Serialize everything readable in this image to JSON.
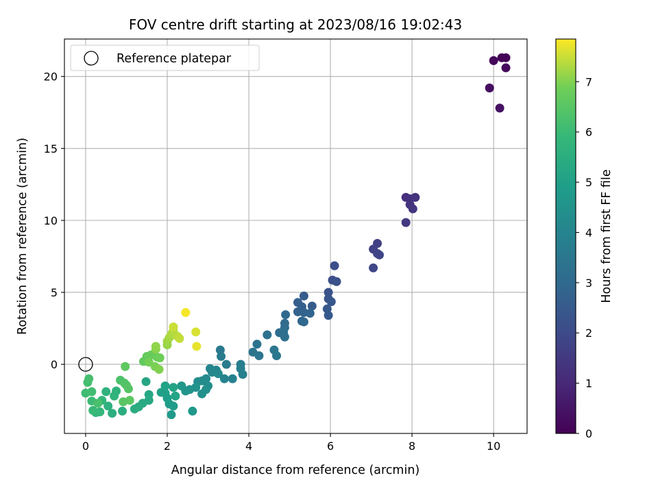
{
  "chart_data": {
    "type": "scatter",
    "title": "FOV centre drift starting at 2023/08/16 19:02:43",
    "xlabel": "Angular distance from reference (arcmin)",
    "ylabel": "Rotation from reference (arcmin)",
    "colorbar_label": "Hours from first FF file",
    "xlim": [
      -0.52,
      10.82
    ],
    "ylim": [
      -4.8,
      22.6
    ],
    "x_ticks": [
      0,
      2,
      4,
      6,
      8,
      10
    ],
    "y_ticks": [
      0,
      5,
      10,
      15,
      20
    ],
    "colorbar_range": [
      0,
      7.85
    ],
    "colorbar_ticks": [
      0,
      1,
      2,
      3,
      4,
      5,
      6,
      7
    ],
    "colormap": "viridis",
    "grid": true,
    "legend": {
      "position": "top-left",
      "entries": [
        "Reference platepar"
      ]
    },
    "reference_point": {
      "x": 0,
      "y": 0
    },
    "points": [
      {
        "x": 10.2,
        "y": 21.3,
        "h": 0.05
      },
      {
        "x": 10.3,
        "y": 21.3,
        "h": 0.1
      },
      {
        "x": 10.0,
        "y": 21.1,
        "h": 0.15
      },
      {
        "x": 10.3,
        "y": 20.6,
        "h": 0.2
      },
      {
        "x": 9.9,
        "y": 19.2,
        "h": 0.3
      },
      {
        "x": 10.15,
        "y": 17.8,
        "h": 0.4
      },
      {
        "x": 7.85,
        "y": 11.6,
        "h": 1.2
      },
      {
        "x": 7.95,
        "y": 11.5,
        "h": 1.25
      },
      {
        "x": 8.08,
        "y": 11.6,
        "h": 1.3
      },
      {
        "x": 7.95,
        "y": 11.1,
        "h": 1.35
      },
      {
        "x": 8.02,
        "y": 10.8,
        "h": 1.4
      },
      {
        "x": 7.85,
        "y": 9.85,
        "h": 1.5
      },
      {
        "x": 7.15,
        "y": 8.4,
        "h": 1.7
      },
      {
        "x": 7.05,
        "y": 8.0,
        "h": 1.75
      },
      {
        "x": 7.15,
        "y": 7.7,
        "h": 1.8
      },
      {
        "x": 7.2,
        "y": 7.6,
        "h": 1.85
      },
      {
        "x": 7.05,
        "y": 6.7,
        "h": 1.9
      },
      {
        "x": 6.1,
        "y": 6.85,
        "h": 2.1
      },
      {
        "x": 6.05,
        "y": 5.85,
        "h": 2.15
      },
      {
        "x": 6.15,
        "y": 5.75,
        "h": 2.2
      },
      {
        "x": 5.95,
        "y": 5.0,
        "h": 2.3
      },
      {
        "x": 5.95,
        "y": 4.55,
        "h": 2.35
      },
      {
        "x": 6.02,
        "y": 4.35,
        "h": 2.4
      },
      {
        "x": 5.92,
        "y": 3.85,
        "h": 2.45
      },
      {
        "x": 5.95,
        "y": 3.4,
        "h": 2.5
      },
      {
        "x": 5.55,
        "y": 4.05,
        "h": 2.55
      },
      {
        "x": 5.35,
        "y": 4.75,
        "h": 2.6
      },
      {
        "x": 5.2,
        "y": 4.3,
        "h": 2.65
      },
      {
        "x": 5.3,
        "y": 4.0,
        "h": 2.7
      },
      {
        "x": 5.2,
        "y": 3.65,
        "h": 2.75
      },
      {
        "x": 5.35,
        "y": 3.6,
        "h": 2.8
      },
      {
        "x": 5.5,
        "y": 3.55,
        "h": 2.85
      },
      {
        "x": 5.3,
        "y": 3.0,
        "h": 2.9
      },
      {
        "x": 5.35,
        "y": 2.95,
        "h": 2.95
      },
      {
        "x": 4.9,
        "y": 3.45,
        "h": 3.0
      },
      {
        "x": 4.88,
        "y": 2.85,
        "h": 3.05
      },
      {
        "x": 4.88,
        "y": 2.55,
        "h": 3.1
      },
      {
        "x": 4.75,
        "y": 2.2,
        "h": 3.15
      },
      {
        "x": 4.85,
        "y": 2.2,
        "h": 3.2
      },
      {
        "x": 4.88,
        "y": 1.9,
        "h": 3.25
      },
      {
        "x": 4.45,
        "y": 2.05,
        "h": 3.3
      },
      {
        "x": 4.2,
        "y": 1.4,
        "h": 3.35
      },
      {
        "x": 4.1,
        "y": 0.85,
        "h": 3.4
      },
      {
        "x": 4.25,
        "y": 0.6,
        "h": 3.45
      },
      {
        "x": 4.62,
        "y": 1.0,
        "h": 3.5
      },
      {
        "x": 4.68,
        "y": 0.6,
        "h": 3.55
      },
      {
        "x": 3.3,
        "y": 1.0,
        "h": 3.6
      },
      {
        "x": 3.32,
        "y": 0.55,
        "h": 3.65
      },
      {
        "x": 3.45,
        "y": 0.0,
        "h": 3.7
      },
      {
        "x": 3.8,
        "y": 0.0,
        "h": 3.75
      },
      {
        "x": 3.8,
        "y": -0.3,
        "h": 3.8
      },
      {
        "x": 3.85,
        "y": -0.7,
        "h": 3.85
      },
      {
        "x": 3.6,
        "y": -1.0,
        "h": 3.9
      },
      {
        "x": 3.4,
        "y": -1.0,
        "h": 3.95
      },
      {
        "x": 3.2,
        "y": -0.4,
        "h": 4.0
      },
      {
        "x": 3.05,
        "y": -0.3,
        "h": 4.05
      },
      {
        "x": 3.1,
        "y": -0.55,
        "h": 4.1
      },
      {
        "x": 3.25,
        "y": -0.65,
        "h": 4.15
      },
      {
        "x": 2.95,
        "y": -1.0,
        "h": 4.2
      },
      {
        "x": 2.85,
        "y": -1.15,
        "h": 4.25
      },
      {
        "x": 2.75,
        "y": -1.2,
        "h": 4.3
      },
      {
        "x": 3.0,
        "y": -1.5,
        "h": 4.35
      },
      {
        "x": 2.95,
        "y": -1.75,
        "h": 4.4
      },
      {
        "x": 2.85,
        "y": -2.05,
        "h": 4.45
      },
      {
        "x": 2.7,
        "y": -1.6,
        "h": 4.5
      },
      {
        "x": 2.55,
        "y": -1.75,
        "h": 4.55
      },
      {
        "x": 2.45,
        "y": -1.85,
        "h": 4.6
      },
      {
        "x": 2.35,
        "y": -1.5,
        "h": 4.65
      },
      {
        "x": 2.62,
        "y": -3.25,
        "h": 4.7
      },
      {
        "x": 2.1,
        "y": -3.5,
        "h": 4.75
      },
      {
        "x": 2.15,
        "y": -2.9,
        "h": 4.8
      },
      {
        "x": 2.05,
        "y": -2.75,
        "h": 4.85
      },
      {
        "x": 2.0,
        "y": -2.35,
        "h": 4.9
      },
      {
        "x": 1.95,
        "y": -2.0,
        "h": 4.95
      },
      {
        "x": 1.85,
        "y": -1.95,
        "h": 5.0
      },
      {
        "x": 1.95,
        "y": -1.5,
        "h": 5.05
      },
      {
        "x": 2.15,
        "y": -1.6,
        "h": 5.1
      },
      {
        "x": 2.2,
        "y": -2.2,
        "h": 5.15
      },
      {
        "x": 1.48,
        "y": -1.2,
        "h": 5.2
      },
      {
        "x": 1.55,
        "y": -2.1,
        "h": 5.25
      },
      {
        "x": 1.55,
        "y": -2.5,
        "h": 5.3
      },
      {
        "x": 1.4,
        "y": -2.7,
        "h": 5.35
      },
      {
        "x": 1.3,
        "y": -2.95,
        "h": 5.4
      },
      {
        "x": 1.2,
        "y": -3.1,
        "h": 5.45
      },
      {
        "x": 0.9,
        "y": -3.25,
        "h": 5.5
      },
      {
        "x": 0.65,
        "y": -3.4,
        "h": 5.55
      },
      {
        "x": 0.55,
        "y": -2.9,
        "h": 5.6
      },
      {
        "x": 0.5,
        "y": -1.9,
        "h": 5.65
      },
      {
        "x": 0.75,
        "y": -1.85,
        "h": 5.7
      },
      {
        "x": 0.7,
        "y": -2.2,
        "h": 5.75
      },
      {
        "x": 0.4,
        "y": -2.5,
        "h": 5.8
      },
      {
        "x": 0.35,
        "y": -3.3,
        "h": 5.85
      },
      {
        "x": 0.25,
        "y": -3.35,
        "h": 5.9
      },
      {
        "x": 0.18,
        "y": -3.2,
        "h": 5.95
      },
      {
        "x": 0.15,
        "y": -2.55,
        "h": 6.0
      },
      {
        "x": 0.0,
        "y": -2.0,
        "h": 6.05
      },
      {
        "x": 0.15,
        "y": -1.9,
        "h": 6.1
      },
      {
        "x": 0.05,
        "y": -1.25,
        "h": 6.15
      },
      {
        "x": 0.08,
        "y": -1.0,
        "h": 6.2
      },
      {
        "x": 0.3,
        "y": -2.7,
        "h": 6.25
      },
      {
        "x": 0.85,
        "y": -1.1,
        "h": 6.3
      },
      {
        "x": 0.95,
        "y": -1.3,
        "h": 6.35
      },
      {
        "x": 1.0,
        "y": -1.45,
        "h": 6.4
      },
      {
        "x": 1.05,
        "y": -1.7,
        "h": 6.45
      },
      {
        "x": 0.92,
        "y": -2.6,
        "h": 6.5
      },
      {
        "x": 1.08,
        "y": -2.5,
        "h": 6.55
      },
      {
        "x": 0.97,
        "y": -0.15,
        "h": 6.6
      },
      {
        "x": 1.42,
        "y": 0.2,
        "h": 6.65
      },
      {
        "x": 1.5,
        "y": 0.55,
        "h": 6.7
      },
      {
        "x": 1.6,
        "y": 0.65,
        "h": 6.75
      },
      {
        "x": 1.75,
        "y": 0.5,
        "h": 6.8
      },
      {
        "x": 1.82,
        "y": 0.45,
        "h": 6.85
      },
      {
        "x": 1.55,
        "y": 0.15,
        "h": 6.9
      },
      {
        "x": 1.7,
        "y": -0.15,
        "h": 6.95
      },
      {
        "x": 1.8,
        "y": -0.35,
        "h": 7.0
      },
      {
        "x": 1.72,
        "y": 1.05,
        "h": 7.05
      },
      {
        "x": 1.72,
        "y": 1.25,
        "h": 7.1
      },
      {
        "x": 2.0,
        "y": 1.35,
        "h": 7.15
      },
      {
        "x": 2.0,
        "y": 1.6,
        "h": 7.2
      },
      {
        "x": 2.05,
        "y": 1.85,
        "h": 7.25
      },
      {
        "x": 2.1,
        "y": 2.1,
        "h": 7.3
      },
      {
        "x": 2.15,
        "y": 2.35,
        "h": 7.35
      },
      {
        "x": 2.25,
        "y": 1.95,
        "h": 7.4
      },
      {
        "x": 2.3,
        "y": 1.8,
        "h": 7.45
      },
      {
        "x": 2.15,
        "y": 2.6,
        "h": 7.5
      },
      {
        "x": 2.7,
        "y": 2.25,
        "h": 7.6
      },
      {
        "x": 2.72,
        "y": 1.25,
        "h": 7.7
      },
      {
        "x": 2.45,
        "y": 3.6,
        "h": 7.8
      }
    ]
  }
}
